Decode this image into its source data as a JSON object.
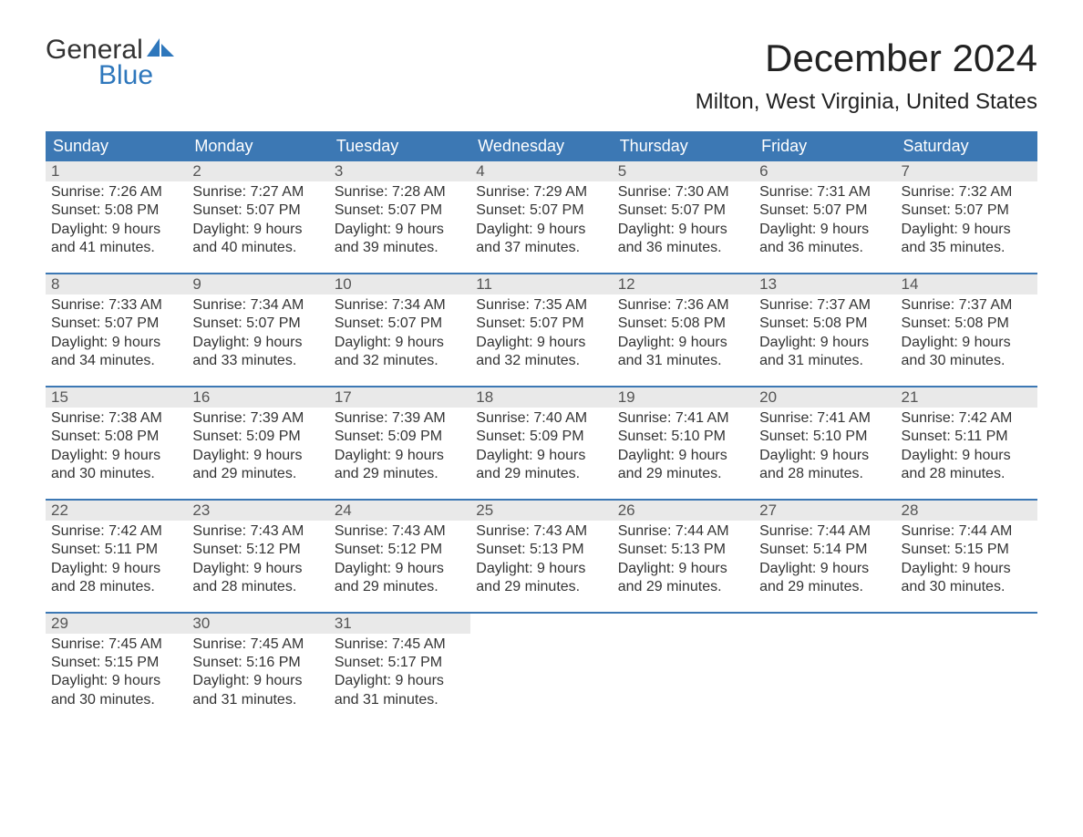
{
  "colors": {
    "header_bg": "#3c78b4",
    "header_text": "#ffffff",
    "daynum_bg": "#e9e9e9",
    "daynum_text": "#555555",
    "body_text": "#333333",
    "week_border": "#3c78b4",
    "logo_blue": "#2e77bc",
    "logo_dark": "#333333",
    "page_bg": "#ffffff"
  },
  "typography": {
    "month_title_size": 42,
    "location_size": 24,
    "header_cell_size": 18,
    "daynum_size": 17,
    "daybody_size": 16,
    "logo_size": 30
  },
  "logo": {
    "line1": "General",
    "line2": "Blue"
  },
  "title": {
    "month": "December 2024",
    "location": "Milton, West Virginia, United States"
  },
  "day_headers": [
    "Sunday",
    "Monday",
    "Tuesday",
    "Wednesday",
    "Thursday",
    "Friday",
    "Saturday"
  ],
  "weeks": [
    [
      {
        "n": "1",
        "sunrise": "Sunrise: 7:26 AM",
        "sunset": "Sunset: 5:08 PM",
        "d1": "Daylight: 9 hours",
        "d2": "and 41 minutes."
      },
      {
        "n": "2",
        "sunrise": "Sunrise: 7:27 AM",
        "sunset": "Sunset: 5:07 PM",
        "d1": "Daylight: 9 hours",
        "d2": "and 40 minutes."
      },
      {
        "n": "3",
        "sunrise": "Sunrise: 7:28 AM",
        "sunset": "Sunset: 5:07 PM",
        "d1": "Daylight: 9 hours",
        "d2": "and 39 minutes."
      },
      {
        "n": "4",
        "sunrise": "Sunrise: 7:29 AM",
        "sunset": "Sunset: 5:07 PM",
        "d1": "Daylight: 9 hours",
        "d2": "and 37 minutes."
      },
      {
        "n": "5",
        "sunrise": "Sunrise: 7:30 AM",
        "sunset": "Sunset: 5:07 PM",
        "d1": "Daylight: 9 hours",
        "d2": "and 36 minutes."
      },
      {
        "n": "6",
        "sunrise": "Sunrise: 7:31 AM",
        "sunset": "Sunset: 5:07 PM",
        "d1": "Daylight: 9 hours",
        "d2": "and 36 minutes."
      },
      {
        "n": "7",
        "sunrise": "Sunrise: 7:32 AM",
        "sunset": "Sunset: 5:07 PM",
        "d1": "Daylight: 9 hours",
        "d2": "and 35 minutes."
      }
    ],
    [
      {
        "n": "8",
        "sunrise": "Sunrise: 7:33 AM",
        "sunset": "Sunset: 5:07 PM",
        "d1": "Daylight: 9 hours",
        "d2": "and 34 minutes."
      },
      {
        "n": "9",
        "sunrise": "Sunrise: 7:34 AM",
        "sunset": "Sunset: 5:07 PM",
        "d1": "Daylight: 9 hours",
        "d2": "and 33 minutes."
      },
      {
        "n": "10",
        "sunrise": "Sunrise: 7:34 AM",
        "sunset": "Sunset: 5:07 PM",
        "d1": "Daylight: 9 hours",
        "d2": "and 32 minutes."
      },
      {
        "n": "11",
        "sunrise": "Sunrise: 7:35 AM",
        "sunset": "Sunset: 5:07 PM",
        "d1": "Daylight: 9 hours",
        "d2": "and 32 minutes."
      },
      {
        "n": "12",
        "sunrise": "Sunrise: 7:36 AM",
        "sunset": "Sunset: 5:08 PM",
        "d1": "Daylight: 9 hours",
        "d2": "and 31 minutes."
      },
      {
        "n": "13",
        "sunrise": "Sunrise: 7:37 AM",
        "sunset": "Sunset: 5:08 PM",
        "d1": "Daylight: 9 hours",
        "d2": "and 31 minutes."
      },
      {
        "n": "14",
        "sunrise": "Sunrise: 7:37 AM",
        "sunset": "Sunset: 5:08 PM",
        "d1": "Daylight: 9 hours",
        "d2": "and 30 minutes."
      }
    ],
    [
      {
        "n": "15",
        "sunrise": "Sunrise: 7:38 AM",
        "sunset": "Sunset: 5:08 PM",
        "d1": "Daylight: 9 hours",
        "d2": "and 30 minutes."
      },
      {
        "n": "16",
        "sunrise": "Sunrise: 7:39 AM",
        "sunset": "Sunset: 5:09 PM",
        "d1": "Daylight: 9 hours",
        "d2": "and 29 minutes."
      },
      {
        "n": "17",
        "sunrise": "Sunrise: 7:39 AM",
        "sunset": "Sunset: 5:09 PM",
        "d1": "Daylight: 9 hours",
        "d2": "and 29 minutes."
      },
      {
        "n": "18",
        "sunrise": "Sunrise: 7:40 AM",
        "sunset": "Sunset: 5:09 PM",
        "d1": "Daylight: 9 hours",
        "d2": "and 29 minutes."
      },
      {
        "n": "19",
        "sunrise": "Sunrise: 7:41 AM",
        "sunset": "Sunset: 5:10 PM",
        "d1": "Daylight: 9 hours",
        "d2": "and 29 minutes."
      },
      {
        "n": "20",
        "sunrise": "Sunrise: 7:41 AM",
        "sunset": "Sunset: 5:10 PM",
        "d1": "Daylight: 9 hours",
        "d2": "and 28 minutes."
      },
      {
        "n": "21",
        "sunrise": "Sunrise: 7:42 AM",
        "sunset": "Sunset: 5:11 PM",
        "d1": "Daylight: 9 hours",
        "d2": "and 28 minutes."
      }
    ],
    [
      {
        "n": "22",
        "sunrise": "Sunrise: 7:42 AM",
        "sunset": "Sunset: 5:11 PM",
        "d1": "Daylight: 9 hours",
        "d2": "and 28 minutes."
      },
      {
        "n": "23",
        "sunrise": "Sunrise: 7:43 AM",
        "sunset": "Sunset: 5:12 PM",
        "d1": "Daylight: 9 hours",
        "d2": "and 28 minutes."
      },
      {
        "n": "24",
        "sunrise": "Sunrise: 7:43 AM",
        "sunset": "Sunset: 5:12 PM",
        "d1": "Daylight: 9 hours",
        "d2": "and 29 minutes."
      },
      {
        "n": "25",
        "sunrise": "Sunrise: 7:43 AM",
        "sunset": "Sunset: 5:13 PM",
        "d1": "Daylight: 9 hours",
        "d2": "and 29 minutes."
      },
      {
        "n": "26",
        "sunrise": "Sunrise: 7:44 AM",
        "sunset": "Sunset: 5:13 PM",
        "d1": "Daylight: 9 hours",
        "d2": "and 29 minutes."
      },
      {
        "n": "27",
        "sunrise": "Sunrise: 7:44 AM",
        "sunset": "Sunset: 5:14 PM",
        "d1": "Daylight: 9 hours",
        "d2": "and 29 minutes."
      },
      {
        "n": "28",
        "sunrise": "Sunrise: 7:44 AM",
        "sunset": "Sunset: 5:15 PM",
        "d1": "Daylight: 9 hours",
        "d2": "and 30 minutes."
      }
    ],
    [
      {
        "n": "29",
        "sunrise": "Sunrise: 7:45 AM",
        "sunset": "Sunset: 5:15 PM",
        "d1": "Daylight: 9 hours",
        "d2": "and 30 minutes."
      },
      {
        "n": "30",
        "sunrise": "Sunrise: 7:45 AM",
        "sunset": "Sunset: 5:16 PM",
        "d1": "Daylight: 9 hours",
        "d2": "and 31 minutes."
      },
      {
        "n": "31",
        "sunrise": "Sunrise: 7:45 AM",
        "sunset": "Sunset: 5:17 PM",
        "d1": "Daylight: 9 hours",
        "d2": "and 31 minutes."
      },
      {
        "empty": true
      },
      {
        "empty": true
      },
      {
        "empty": true
      },
      {
        "empty": true
      }
    ]
  ]
}
